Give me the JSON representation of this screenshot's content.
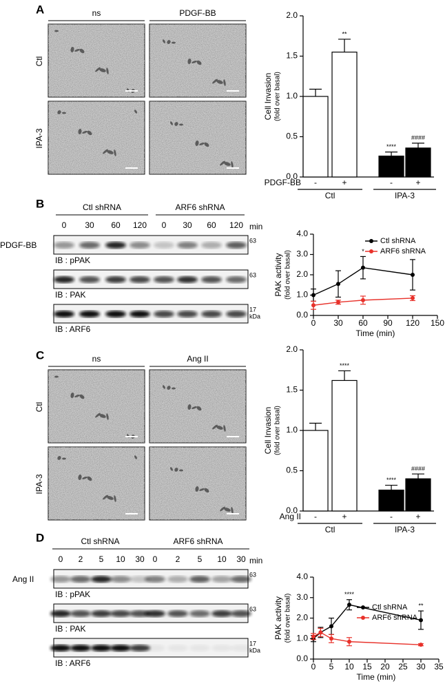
{
  "panels": [
    {
      "letter": "A",
      "columns": [
        "ns",
        "PDGF-BB"
      ],
      "rows": [
        "Ctl",
        "IPA-3"
      ]
    },
    {
      "letter": "B",
      "treatment": "PDGF-BB",
      "groups": [
        "Ctl shRNA",
        "ARF6 shRNA"
      ],
      "lanes": [
        "0",
        "30",
        "60",
        "120",
        "0",
        "30",
        "60",
        "120"
      ],
      "lane_unit": "min",
      "blots": [
        {
          "label": "IB : pPAK",
          "size": "63"
        },
        {
          "label": "IB : PAK",
          "size": "63"
        },
        {
          "label": "IB : ARF6",
          "size": "17"
        }
      ],
      "size_unit": "kDa"
    },
    {
      "letter": "C",
      "columns": [
        "ns",
        "Ang II"
      ],
      "rows": [
        "Ctl",
        "IPA-3"
      ]
    },
    {
      "letter": "D",
      "treatment": "Ang II",
      "groups": [
        "Ctl shRNA",
        "ARF6 shRNA"
      ],
      "lanes": [
        "0",
        "2",
        "5",
        "10",
        "30",
        "0",
        "2",
        "5",
        "10",
        "30"
      ],
      "lane_unit": "min",
      "blots": [
        {
          "label": "IB : pPAK",
          "size": "63"
        },
        {
          "label": "IB : PAK",
          "size": "63"
        },
        {
          "label": "IB : ARF6",
          "size": "17"
        }
      ],
      "size_unit": "kDa"
    }
  ],
  "chart_data": [
    {
      "type": "bar",
      "ylabel": "Cell Invasion",
      "ylabel_sub": "(fold over basal)",
      "treatment": "PDGF-BB",
      "categories": [
        "-",
        "+",
        "-",
        "+"
      ],
      "group_labels": [
        "Ctl",
        "IPA-3"
      ],
      "values": [
        1.0,
        1.55,
        0.26,
        0.36
      ],
      "errors": [
        0.09,
        0.16,
        0.05,
        0.06
      ],
      "annotations": [
        null,
        "**",
        "****",
        "####"
      ],
      "colors": [
        "#ffffff",
        "#ffffff",
        "#000000",
        "#000000"
      ],
      "ylim": [
        0,
        2
      ],
      "yticks": [
        {
          "value": 0,
          "label": "0.0"
        },
        0.5,
        {
          "value": 1,
          "label": "1.0"
        },
        1.5,
        {
          "value": 2,
          "label": "2.0"
        }
      ]
    },
    {
      "type": "line",
      "ylabel": "PAK activity",
      "ylabel_sub": "(fold over basal)",
      "xlabel": "Time (min)",
      "legend": "upper right",
      "xlim": [
        0,
        150
      ],
      "xticks": [
        0,
        30,
        60,
        90,
        120,
        150
      ],
      "ylim": [
        0,
        4
      ],
      "yticks": [
        {
          "value": 0,
          "label": "0.0"
        },
        {
          "value": 1,
          "label": "1.0"
        },
        {
          "value": 2,
          "label": "2.0"
        },
        {
          "value": 3,
          "label": "3.0"
        },
        {
          "value": 4,
          "label": "4.0"
        }
      ],
      "series": [
        {
          "name": "Ctl shRNA",
          "color": "#000000",
          "x": [
            0,
            30,
            60,
            120
          ],
          "values": [
            1.0,
            1.55,
            2.35,
            2.0
          ],
          "errors": [
            0.3,
            0.65,
            0.55,
            0.75
          ],
          "annotations": [
            null,
            null,
            "*",
            null
          ]
        },
        {
          "name": "ARF6 shRNA",
          "color": "#e8312a",
          "x": [
            0,
            30,
            60,
            120
          ],
          "values": [
            0.5,
            0.65,
            0.75,
            0.85
          ],
          "errors": [
            0.2,
            0.1,
            0.2,
            0.12
          ]
        }
      ]
    },
    {
      "type": "bar",
      "ylabel": "Cell Invasion",
      "ylabel_sub": "(fold over basal)",
      "treatment": "Ang II",
      "categories": [
        "-",
        "+",
        "-",
        "+"
      ],
      "group_labels": [
        "Ctl",
        "IPA-3"
      ],
      "values": [
        1.0,
        1.62,
        0.26,
        0.4
      ],
      "errors": [
        0.09,
        0.12,
        0.06,
        0.06
      ],
      "annotations": [
        null,
        "****",
        "****",
        "####"
      ],
      "colors": [
        "#ffffff",
        "#ffffff",
        "#000000",
        "#000000"
      ],
      "ylim": [
        0,
        2
      ],
      "yticks": [
        {
          "value": 0,
          "label": "0.0"
        },
        0.5,
        {
          "value": 1,
          "label": "1.0"
        },
        1.5,
        {
          "value": 2,
          "label": "2.0"
        }
      ]
    },
    {
      "type": "line",
      "ylabel": "PAK activity",
      "ylabel_sub": "(fold over basal)",
      "xlabel": "Time (min)",
      "legend": "center right",
      "xlim": [
        0,
        35
      ],
      "xticks": [
        0,
        5,
        10,
        15,
        20,
        25,
        30,
        35
      ],
      "ylim": [
        0,
        4
      ],
      "yticks": [
        {
          "value": 0,
          "label": "0.0"
        },
        {
          "value": 1,
          "label": "1.0"
        },
        {
          "value": 2,
          "label": "2.0"
        },
        {
          "value": 3,
          "label": "3.0"
        },
        {
          "value": 4,
          "label": "4.0"
        }
      ],
      "series": [
        {
          "name": "Ctl shRNA",
          "color": "#000000",
          "x": [
            0,
            2,
            5,
            10,
            30
          ],
          "values": [
            1.0,
            1.3,
            1.6,
            2.65,
            1.9
          ],
          "errors": [
            0.15,
            0.25,
            0.4,
            0.25,
            0.45
          ],
          "annotations": [
            null,
            null,
            null,
            "****",
            "**"
          ]
        },
        {
          "name": "ARF6 shRNA",
          "color": "#e8312a",
          "x": [
            0,
            2,
            5,
            10,
            30
          ],
          "values": [
            1.1,
            1.3,
            1.0,
            0.85,
            0.7
          ],
          "errors": [
            0.15,
            0.2,
            0.2,
            0.2,
            0.05
          ]
        }
      ]
    }
  ]
}
